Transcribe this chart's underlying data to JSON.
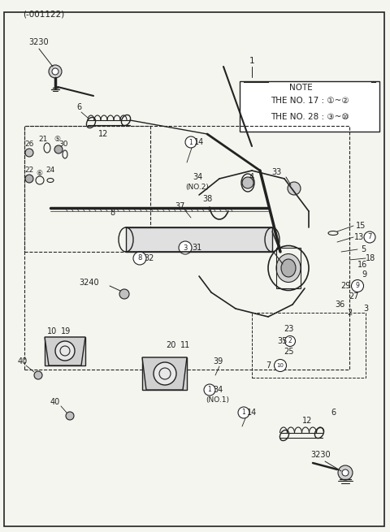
{
  "bg_color": "#f5f5f0",
  "line_color": "#222222",
  "title_code": "(-001122)",
  "note_text": [
    "NOTE",
    "THE NO. 17 : ①~②",
    "THE NO. 28 : ③~⑩"
  ],
  "part_number_1": "1",
  "outer_border": [
    5,
    5,
    470,
    645
  ],
  "figsize": [
    4.8,
    6.55
  ],
  "dpi": 100
}
